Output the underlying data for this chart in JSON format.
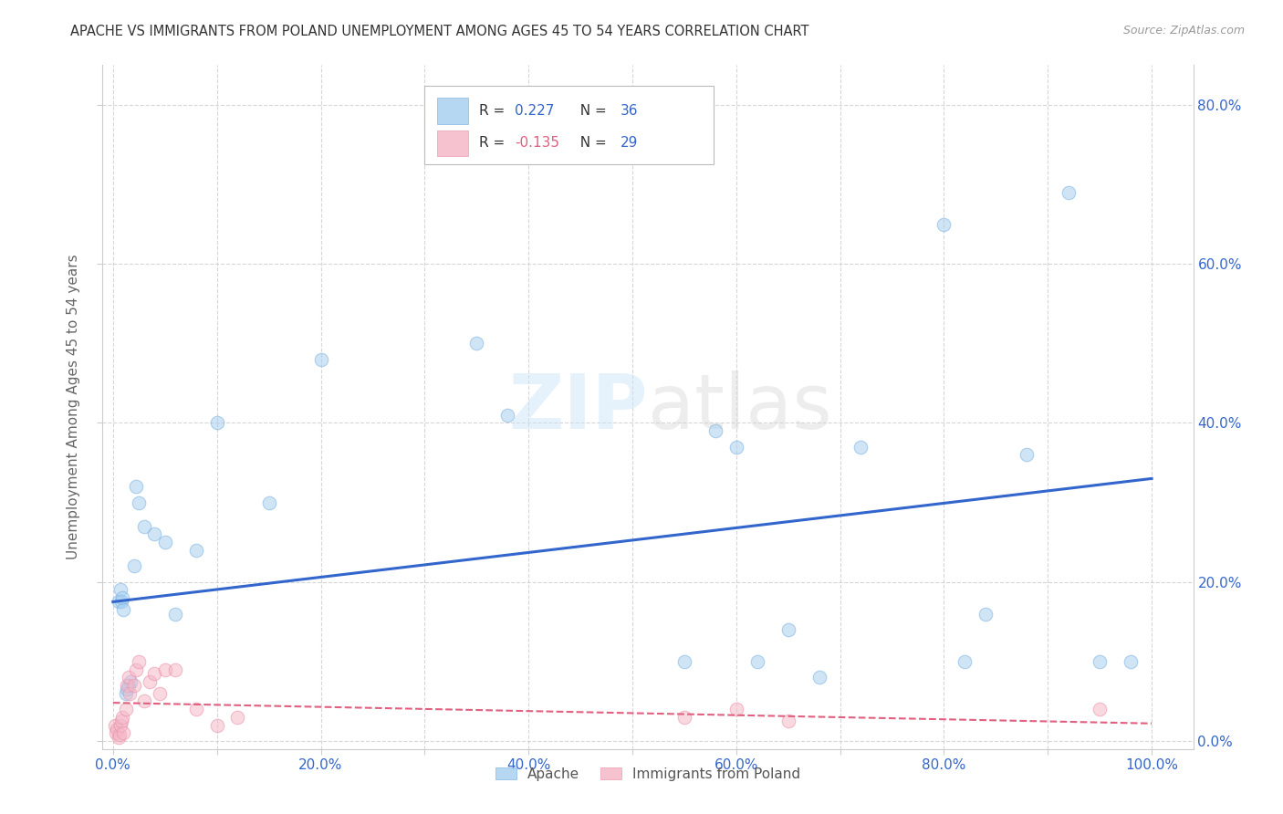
{
  "title": "APACHE VS IMMIGRANTS FROM POLAND UNEMPLOYMENT AMONG AGES 45 TO 54 YEARS CORRELATION CHART",
  "source": "Source: ZipAtlas.com",
  "xlabel_ticks": [
    "0.0%",
    "",
    "20.0%",
    "",
    "40.0%",
    "",
    "60.0%",
    "",
    "80.0%",
    "",
    "100.0%"
  ],
  "xlabel_vals": [
    0.0,
    0.1,
    0.2,
    0.3,
    0.4,
    0.5,
    0.6,
    0.7,
    0.8,
    0.9,
    1.0
  ],
  "ylabel_ticks": [
    "0.0%",
    "20.0%",
    "40.0%",
    "60.0%",
    "80.0%"
  ],
  "ylabel_vals": [
    0.0,
    0.2,
    0.4,
    0.6,
    0.8
  ],
  "ylabel_label": "Unemployment Among Ages 45 to 54 years",
  "xlim": [
    -0.01,
    1.04
  ],
  "ylim": [
    -0.01,
    0.85
  ],
  "watermark_zip": "ZIP",
  "watermark_atlas": "atlas",
  "apache_color": "#A8D0F0",
  "apache_edge_color": "#7AB0E0",
  "apache_line_color": "#3366CC",
  "poland_color": "#F5B8C8",
  "poland_edge_color": "#E890A8",
  "poland_line_color": "#E06080",
  "legend_apache_label": "Apache",
  "legend_poland_label": "Immigrants from Poland",
  "apache_R": 0.227,
  "apache_N": 36,
  "poland_R": -0.135,
  "poland_N": 29,
  "apache_points_x": [
    0.005,
    0.007,
    0.008,
    0.009,
    0.01,
    0.012,
    0.013,
    0.015,
    0.017,
    0.02,
    0.022,
    0.025,
    0.03,
    0.04,
    0.05,
    0.06,
    0.08,
    0.1,
    0.15,
    0.2,
    0.35,
    0.38,
    0.55,
    0.58,
    0.6,
    0.62,
    0.65,
    0.68,
    0.72,
    0.8,
    0.82,
    0.84,
    0.88,
    0.92,
    0.95,
    0.98
  ],
  "apache_points_y": [
    0.175,
    0.19,
    0.175,
    0.18,
    0.165,
    0.06,
    0.065,
    0.07,
    0.075,
    0.22,
    0.32,
    0.3,
    0.27,
    0.26,
    0.25,
    0.16,
    0.24,
    0.4,
    0.3,
    0.48,
    0.5,
    0.41,
    0.1,
    0.39,
    0.37,
    0.1,
    0.14,
    0.08,
    0.37,
    0.65,
    0.1,
    0.16,
    0.36,
    0.69,
    0.1,
    0.1
  ],
  "poland_points_x": [
    0.002,
    0.003,
    0.004,
    0.005,
    0.006,
    0.007,
    0.008,
    0.009,
    0.01,
    0.012,
    0.013,
    0.015,
    0.016,
    0.02,
    0.022,
    0.025,
    0.03,
    0.035,
    0.04,
    0.045,
    0.05,
    0.06,
    0.08,
    0.1,
    0.12,
    0.55,
    0.6,
    0.65,
    0.95
  ],
  "poland_points_y": [
    0.02,
    0.01,
    0.015,
    0.005,
    0.008,
    0.02,
    0.025,
    0.03,
    0.01,
    0.04,
    0.07,
    0.08,
    0.06,
    0.07,
    0.09,
    0.1,
    0.05,
    0.075,
    0.085,
    0.06,
    0.09,
    0.09,
    0.04,
    0.02,
    0.03,
    0.03,
    0.04,
    0.025,
    0.04
  ],
  "apache_trend_x": [
    0.0,
    1.0
  ],
  "apache_trend_y": [
    0.175,
    0.33
  ],
  "poland_trend_x": [
    0.0,
    1.0
  ],
  "poland_trend_y": [
    0.048,
    0.022
  ],
  "background_color": "#FFFFFF",
  "grid_color": "#CCCCCC",
  "marker_size": 110,
  "marker_alpha": 0.55,
  "title_color": "#333333",
  "axis_label_color": "#666666",
  "tick_label_color_blue": "#3366CC",
  "source_color": "#999999"
}
